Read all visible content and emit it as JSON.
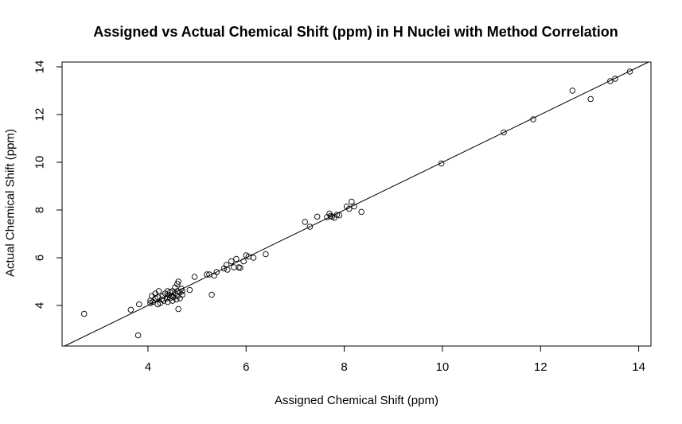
{
  "chart_data": {
    "type": "scatter",
    "title": "Assigned vs Actual Chemical Shift (ppm) in H Nuclei with Method Correlation",
    "xlabel": "Assigned Chemical Shift (ppm)",
    "ylabel": "Actual Chemical Shift (ppm)",
    "xlim": [
      2.25,
      14.25
    ],
    "ylim": [
      2.3,
      14.2
    ],
    "xticks": [
      4,
      6,
      8,
      10,
      12,
      14
    ],
    "yticks": [
      4,
      6,
      8,
      10,
      12,
      14
    ],
    "grid": false,
    "marker": "open-circle",
    "reference_line": {
      "slope": 1,
      "intercept": 0
    },
    "points": [
      [
        2.7,
        3.65
      ],
      [
        3.65,
        3.82
      ],
      [
        3.8,
        2.75
      ],
      [
        3.82,
        4.05
      ],
      [
        4.05,
        4.1
      ],
      [
        4.05,
        4.2
      ],
      [
        4.08,
        4.4
      ],
      [
        4.1,
        4.15
      ],
      [
        4.15,
        4.3
      ],
      [
        4.15,
        4.5
      ],
      [
        4.2,
        4.05
      ],
      [
        4.2,
        4.35
      ],
      [
        4.22,
        4.6
      ],
      [
        4.25,
        4.1
      ],
      [
        4.28,
        4.25
      ],
      [
        4.3,
        4.4
      ],
      [
        4.32,
        4.2
      ],
      [
        4.35,
        4.5
      ],
      [
        4.38,
        4.3
      ],
      [
        4.4,
        4.6
      ],
      [
        4.4,
        4.15
      ],
      [
        4.42,
        4.45
      ],
      [
        4.45,
        4.55
      ],
      [
        4.45,
        4.3
      ],
      [
        4.48,
        4.4
      ],
      [
        4.5,
        4.2
      ],
      [
        4.5,
        4.6
      ],
      [
        4.52,
        4.35
      ],
      [
        4.55,
        4.5
      ],
      [
        4.55,
        4.75
      ],
      [
        4.58,
        4.25
      ],
      [
        4.6,
        4.4
      ],
      [
        4.6,
        4.6
      ],
      [
        4.6,
        4.9
      ],
      [
        4.62,
        3.85
      ],
      [
        4.62,
        5.0
      ],
      [
        4.65,
        4.55
      ],
      [
        4.65,
        4.3
      ],
      [
        4.68,
        4.7
      ],
      [
        4.7,
        4.45
      ],
      [
        4.7,
        4.6
      ],
      [
        4.85,
        4.65
      ],
      [
        4.95,
        5.2
      ],
      [
        5.2,
        5.3
      ],
      [
        5.25,
        5.3
      ],
      [
        5.3,
        4.45
      ],
      [
        5.35,
        5.25
      ],
      [
        5.4,
        5.4
      ],
      [
        5.55,
        5.55
      ],
      [
        5.6,
        5.7
      ],
      [
        5.62,
        5.5
      ],
      [
        5.7,
        5.85
      ],
      [
        5.75,
        5.6
      ],
      [
        5.8,
        5.95
      ],
      [
        5.85,
        5.6
      ],
      [
        5.88,
        5.58
      ],
      [
        5.95,
        5.85
      ],
      [
        6.0,
        6.1
      ],
      [
        6.05,
        6.05
      ],
      [
        6.15,
        6.0
      ],
      [
        6.4,
        6.15
      ],
      [
        7.2,
        7.5
      ],
      [
        7.3,
        7.3
      ],
      [
        7.45,
        7.72
      ],
      [
        7.65,
        7.7
      ],
      [
        7.7,
        7.85
      ],
      [
        7.72,
        7.75
      ],
      [
        7.75,
        7.72
      ],
      [
        7.8,
        7.68
      ],
      [
        7.85,
        7.8
      ],
      [
        7.9,
        7.78
      ],
      [
        8.05,
        8.15
      ],
      [
        8.1,
        8.05
      ],
      [
        8.15,
        8.35
      ],
      [
        8.2,
        8.15
      ],
      [
        8.35,
        7.92
      ],
      [
        9.98,
        9.95
      ],
      [
        11.25,
        11.25
      ],
      [
        11.85,
        11.8
      ],
      [
        12.65,
        13.0
      ],
      [
        13.02,
        12.65
      ],
      [
        13.42,
        13.4
      ],
      [
        13.52,
        13.5
      ],
      [
        13.82,
        13.8
      ]
    ]
  }
}
